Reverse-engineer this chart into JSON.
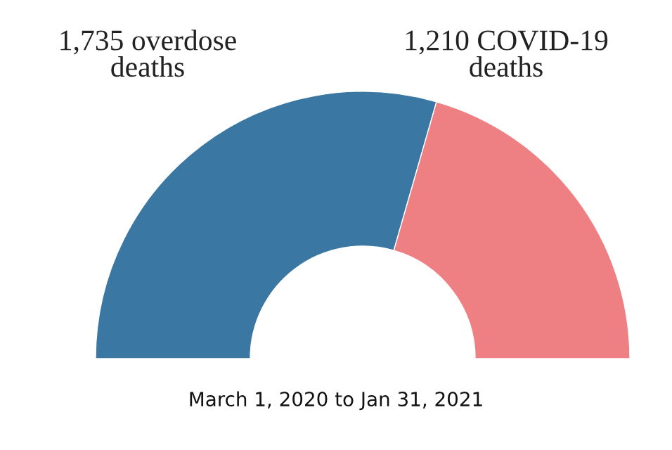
{
  "chart_data": {
    "type": "donut",
    "categories": [
      "1,735 overdose\ndeaths",
      "1,210 COVID-19\ndeaths"
    ],
    "values": [
      1735,
      1210
    ],
    "colors": [
      "#3b77a3",
      "#ee7f82"
    ],
    "annotations": [
      "March 1, 2020 to Jan 31, 2021"
    ]
  }
}
